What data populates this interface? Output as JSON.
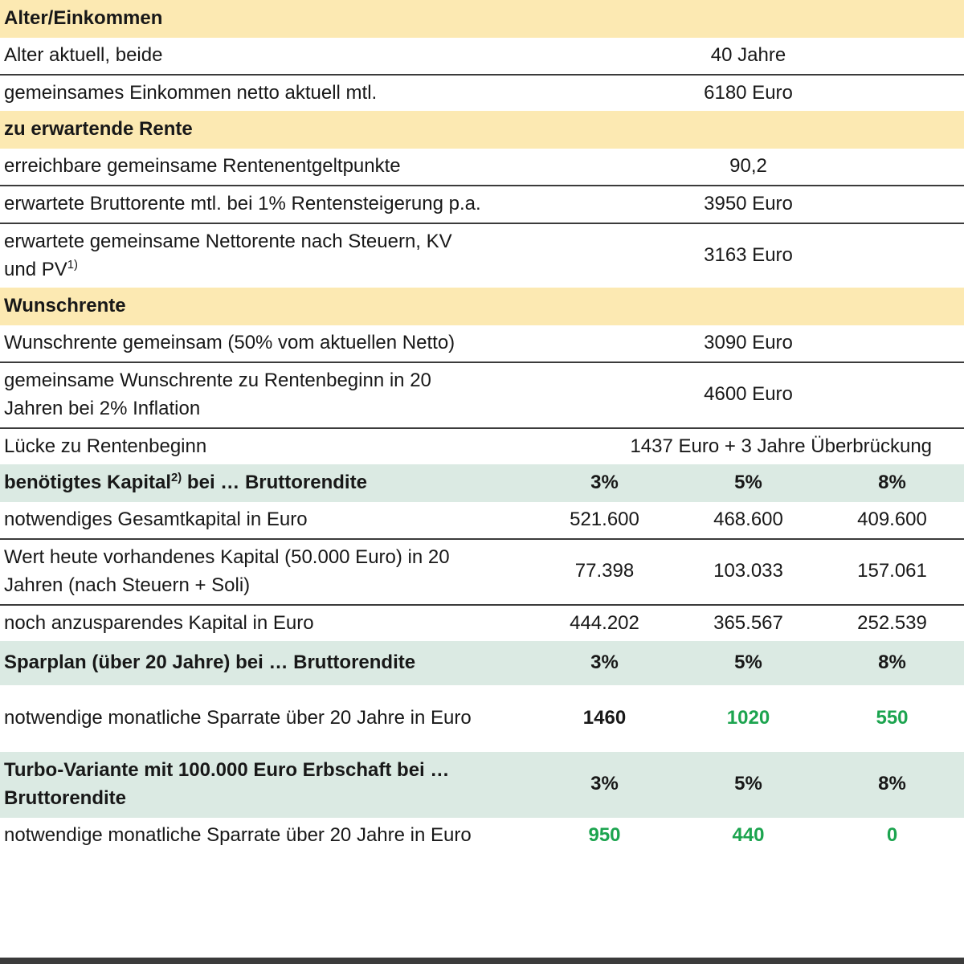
{
  "colors": {
    "section_yellow": "#FCE9B2",
    "section_teal": "#DBEAE3",
    "highlight_green": "#1CA44F",
    "divider_line": "#3B3B3B",
    "text": "#181818",
    "bottom_bar": "#3B3B3B"
  },
  "chart_data": {
    "type": "table",
    "title": "",
    "return_columns": [
      "3%",
      "5%",
      "8%"
    ],
    "footnote_markers": [
      "1)",
      "2)"
    ],
    "rows": [
      {
        "kind": "section",
        "color": "yellow",
        "label": "Alter/Einkommen"
      },
      {
        "kind": "data",
        "label": "Alter aktuell, beide",
        "value": "40 Jahre",
        "divider_below": true
      },
      {
        "kind": "data",
        "label": "gemeinsames Einkommen netto aktuell mtl.",
        "value": "6180 Euro"
      },
      {
        "kind": "section",
        "color": "yellow",
        "label": "zu erwartende Rente"
      },
      {
        "kind": "data",
        "label": "erreichbare gemeinsame Rentenentgeltpunkte",
        "value": "90,2",
        "divider_below": true
      },
      {
        "kind": "data",
        "label": "erwartete Bruttorente mtl. bei 1% Rentensteigerung p.a.",
        "value": "3950 Euro",
        "divider_below": true
      },
      {
        "kind": "data",
        "label": "erwartete gemeinsame Nettorente nach Steuern, KV und PV",
        "label_sup": "1)",
        "value": "3163 Euro"
      },
      {
        "kind": "section",
        "color": "yellow",
        "label": "Wunschrente"
      },
      {
        "kind": "data",
        "label": "Wunschrente gemeinsam (50% vom aktuellen Netto)",
        "value": "3090 Euro",
        "divider_below": true
      },
      {
        "kind": "data",
        "label": "gemeinsame Wunschrente zu Rentenbeginn in 20 Jahren bei 2% Inflation",
        "value": "4600 Euro",
        "divider_below": true
      },
      {
        "kind": "data",
        "label": "Lücke zu Rentenbeginn",
        "value": "1437 Euro + 3 Jahre Überbrückung",
        "value_align": "right"
      },
      {
        "kind": "section",
        "color": "teal",
        "label": "benötigtes Kapital",
        "label_sup": "2)",
        "label_rest": " bei … Bruttorendite",
        "cols": [
          "3%",
          "5%",
          "8%"
        ]
      },
      {
        "kind": "data",
        "label": "notwendiges Gesamtkapital in Euro",
        "values": [
          "521.600",
          "468.600",
          "409.600"
        ],
        "divider_below": true
      },
      {
        "kind": "data",
        "label": "Wert heute vorhandenes Kapital (50.000 Euro) in 20 Jahren (nach Steuern + Soli)",
        "values": [
          "77.398",
          "103.033",
          "157.061"
        ],
        "divider_below": true
      },
      {
        "kind": "data",
        "label": "noch anzusparendes Kapital in Euro",
        "values": [
          "444.202",
          "365.567",
          "252.539"
        ]
      },
      {
        "kind": "section",
        "color": "teal",
        "tall": true,
        "label": "Sparplan (über 20 Jahre) bei … Bruttorendite",
        "cols": [
          "3%",
          "5%",
          "8%"
        ]
      },
      {
        "kind": "data",
        "tall": true,
        "label": "notwendige monatliche Sparrate über 20 Jahre in Euro",
        "values": [
          "1460",
          "1020",
          "550"
        ],
        "emphasis": [
          "black",
          "green",
          "green"
        ]
      },
      {
        "kind": "section",
        "color": "teal",
        "label": "Turbo-Variante mit 100.000 Euro Erbschaft bei … Bruttorendite",
        "cols": [
          "3%",
          "5%",
          "8%"
        ]
      },
      {
        "kind": "data",
        "label": "notwendige monatliche Sparrate über 20 Jahre in Euro",
        "values": [
          "950",
          "440",
          "0"
        ],
        "emphasis": [
          "green",
          "green",
          "green"
        ]
      }
    ]
  }
}
